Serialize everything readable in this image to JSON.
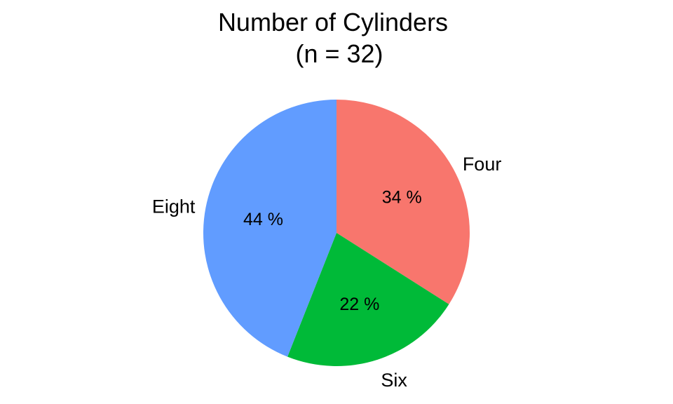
{
  "chart_data": {
    "type": "pie",
    "title": "Number of Cylinders",
    "subtitle": "(n = 32)",
    "categories": [
      "Four",
      "Six",
      "Eight"
    ],
    "values": [
      34,
      22,
      44
    ],
    "value_labels": [
      "34 %",
      "22 %",
      "44 %"
    ],
    "colors": [
      "#F8766D",
      "#00BA38",
      "#619CFF"
    ],
    "legend": "none",
    "grid": false
  }
}
